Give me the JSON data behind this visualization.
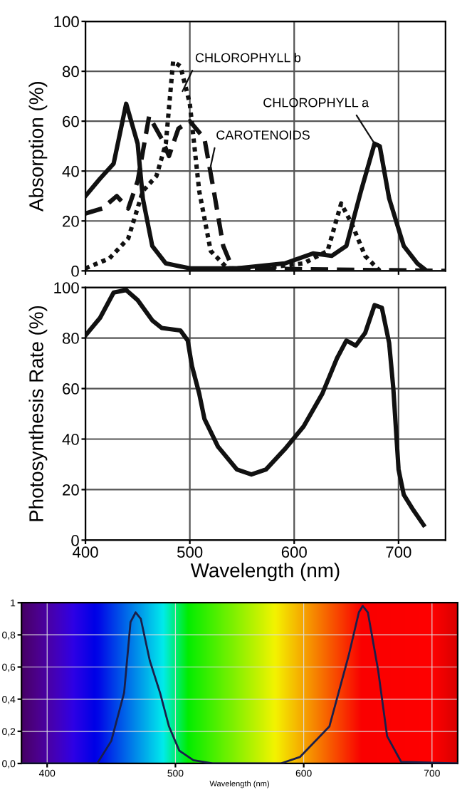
{
  "chart_data": [
    {
      "type": "line",
      "ylabel": "Absorption (%)",
      "xlim": [
        400,
        745
      ],
      "ylim": [
        0,
        100
      ],
      "xticks": [
        400,
        500,
        600,
        700
      ],
      "yticks": [
        0,
        20,
        40,
        60,
        80,
        100
      ],
      "grid": true,
      "tick_labels": "y",
      "series": [
        {
          "color": "#111111",
          "line_style": "solid",
          "x": [
            400,
            414,
            427,
            439,
            450,
            455,
            464,
            477,
            500,
            545,
            591,
            618,
            636,
            650,
            664,
            677,
            682,
            691,
            705,
            718,
            727
          ],
          "values": [
            30,
            37,
            43,
            67,
            51,
            29,
            10,
            3,
            1,
            1,
            3,
            7,
            6,
            10,
            32,
            51,
            50,
            29,
            10,
            3,
            0
          ]
        },
        {
          "color": "#111111",
          "line_style": "dotted",
          "x": [
            400,
            423,
            441,
            455,
            468,
            477,
            484,
            491,
            500,
            509,
            520,
            536,
            568,
            609,
            632,
            645,
            655,
            668,
            682
          ],
          "values": [
            1,
            5,
            13,
            32,
            38,
            51,
            84,
            82,
            67,
            32,
            8,
            1,
            1,
            3,
            8,
            27,
            19,
            6,
            0
          ]
        },
        {
          "color": "#111111",
          "line_style": "dashed",
          "x": [
            400,
            416,
            430,
            441,
            450,
            461,
            473,
            480,
            489,
            500,
            514,
            523,
            532,
            541,
            745
          ],
          "values": [
            23,
            25,
            30,
            25,
            36,
            62,
            53,
            46,
            57,
            60,
            53,
            32,
            10,
            1,
            0
          ]
        }
      ],
      "annotations": [
        {
          "text": "CHLOROPHYLL b",
          "x": 493,
          "y": 72
        },
        {
          "text": "CHLOROPHYLL a",
          "x": 677,
          "y": 51
        },
        {
          "text": "CAROTENOIDS",
          "x": 520,
          "y": 42
        }
      ]
    },
    {
      "type": "line",
      "xlabel": "Wavelength (nm)",
      "ylabel": "Photosynthesis Rate (%)",
      "xlim": [
        400,
        745
      ],
      "ylim": [
        0,
        100
      ],
      "xticks": [
        400,
        500,
        600,
        700
      ],
      "yticks": [
        0,
        20,
        40,
        60,
        80,
        100
      ],
      "grid": true,
      "series": [
        {
          "color": "#111111",
          "line_style": "solid",
          "x": [
            400,
            414,
            427,
            439,
            450,
            464,
            473,
            491,
            498,
            502,
            509,
            514,
            527,
            545,
            559,
            573,
            591,
            609,
            627,
            641,
            650,
            659,
            668,
            677,
            684,
            691,
            695,
            700,
            705,
            714,
            724
          ],
          "values": [
            81,
            88,
            98,
            99,
            95,
            87,
            84,
            83,
            79,
            69,
            58,
            48,
            37,
            28,
            26,
            28,
            36,
            45,
            58,
            72,
            79,
            77,
            82,
            93,
            92,
            78,
            60,
            28,
            18,
            12,
            6
          ]
        }
      ]
    },
    {
      "type": "line",
      "xlabel": "Wavelength (nm)",
      "xlim": [
        380,
        720
      ],
      "ylim": [
        0,
        1
      ],
      "xticks": [
        400,
        500,
        600,
        700
      ],
      "yticks": [
        {
          "value": 0,
          "label": "0,0"
        },
        {
          "value": 0.2,
          "label": "0,2"
        },
        {
          "value": 0.4,
          "label": "0,4"
        },
        {
          "value": 0.6,
          "label": "0,6"
        },
        {
          "value": 0.8,
          "label": "0,8"
        },
        {
          "value": 1,
          "label": "1"
        }
      ],
      "grid": true,
      "series": [
        {
          "color": "#1a1f4a",
          "line_style": "solid",
          "x": [
            380,
            439,
            450,
            460,
            465,
            469,
            473,
            480,
            488,
            495,
            503,
            514,
            529,
            582,
            597,
            620,
            635,
            643,
            646,
            650,
            658,
            665,
            676,
            720
          ],
          "values": [
            0,
            0,
            0.14,
            0.44,
            0.88,
            0.94,
            0.9,
            0.64,
            0.44,
            0.23,
            0.08,
            0.02,
            0,
            0,
            0.04,
            0.23,
            0.67,
            0.94,
            0.98,
            0.94,
            0.58,
            0.17,
            0.01,
            0
          ]
        }
      ]
    }
  ]
}
